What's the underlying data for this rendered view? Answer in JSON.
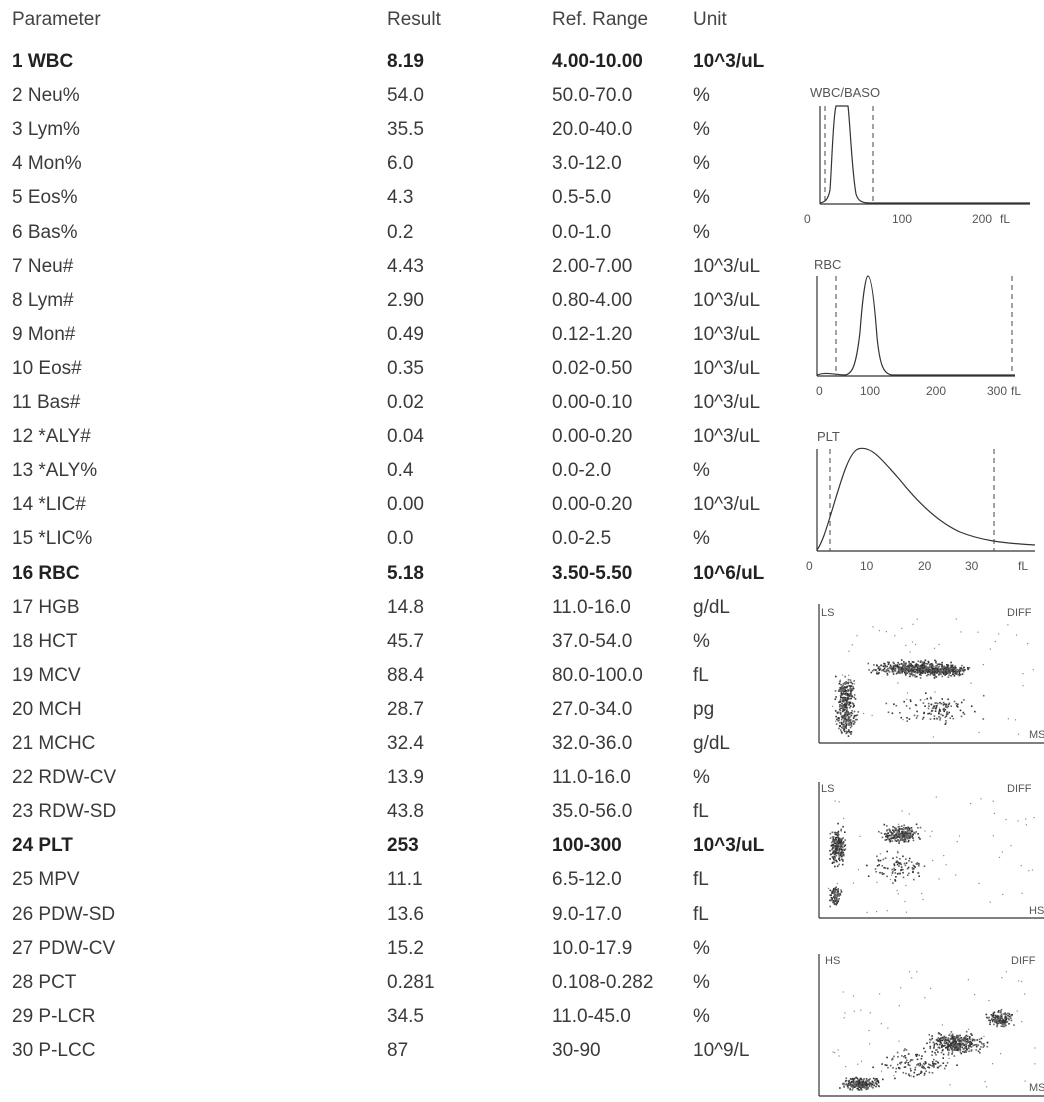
{
  "headers": {
    "parameter": "Parameter",
    "result": "Result",
    "ref": "Ref. Range",
    "unit": "Unit"
  },
  "rows": [
    {
      "name": "1  WBC",
      "result": "8.19",
      "ref": "4.00-10.00",
      "unit": "10^3/uL",
      "bold": true
    },
    {
      "name": "2  Neu%",
      "result": "54.0",
      "ref": "50.0-70.0",
      "unit": "%",
      "bold": false
    },
    {
      "name": "3  Lym%",
      "result": "35.5",
      "ref": "20.0-40.0",
      "unit": "%",
      "bold": false
    },
    {
      "name": "4  Mon%",
      "result": "6.0",
      "ref": "3.0-12.0",
      "unit": "%",
      "bold": false
    },
    {
      "name": "5  Eos%",
      "result": "4.3",
      "ref": "0.5-5.0",
      "unit": "%",
      "bold": false
    },
    {
      "name": "6  Bas%",
      "result": "0.2",
      "ref": "0.0-1.0",
      "unit": "%",
      "bold": false
    },
    {
      "name": "7  Neu#",
      "result": "4.43",
      "ref": "2.00-7.00",
      "unit": "10^3/uL",
      "bold": false
    },
    {
      "name": "8  Lym#",
      "result": "2.90",
      "ref": "0.80-4.00",
      "unit": "10^3/uL",
      "bold": false
    },
    {
      "name": "9  Mon#",
      "result": "0.49",
      "ref": "0.12-1.20",
      "unit": "10^3/uL",
      "bold": false
    },
    {
      "name": "10 Eos#",
      "result": "0.35",
      "ref": "0.02-0.50",
      "unit": "10^3/uL",
      "bold": false
    },
    {
      "name": "11 Bas#",
      "result": "0.02",
      "ref": "0.00-0.10",
      "unit": "10^3/uL",
      "bold": false
    },
    {
      "name": "12 *ALY#",
      "result": "0.04",
      "ref": "0.00-0.20",
      "unit": "10^3/uL",
      "bold": false
    },
    {
      "name": "13 *ALY%",
      "result": "0.4",
      "ref": "0.0-2.0",
      "unit": "%",
      "bold": false
    },
    {
      "name": "14 *LIC#",
      "result": "0.00",
      "ref": "0.00-0.20",
      "unit": "10^3/uL",
      "bold": false
    },
    {
      "name": "15 *LIC%",
      "result": "0.0",
      "ref": "0.0-2.5",
      "unit": "%",
      "bold": false
    },
    {
      "name": "16 RBC",
      "result": "5.18",
      "ref": "3.50-5.50",
      "unit": "10^6/uL",
      "bold": true
    },
    {
      "name": "17 HGB",
      "result": "14.8",
      "ref": "11.0-16.0",
      "unit": "g/dL",
      "bold": false
    },
    {
      "name": "18 HCT",
      "result": "45.7",
      "ref": "37.0-54.0",
      "unit": "%",
      "bold": false
    },
    {
      "name": "19 MCV",
      "result": "88.4",
      "ref": "80.0-100.0",
      "unit": "fL",
      "bold": false
    },
    {
      "name": "20 MCH",
      "result": "28.7",
      "ref": "27.0-34.0",
      "unit": "pg",
      "bold": false
    },
    {
      "name": "21 MCHC",
      "result": "32.4",
      "ref": "32.0-36.0",
      "unit": "g/dL",
      "bold": false
    },
    {
      "name": "22 RDW-CV",
      "result": "13.9",
      "ref": "11.0-16.0",
      "unit": "%",
      "bold": false
    },
    {
      "name": "23 RDW-SD",
      "result": "43.8",
      "ref": "35.0-56.0",
      "unit": "fL",
      "bold": false
    },
    {
      "name": "24 PLT",
      "result": "253",
      "ref": "100-300",
      "unit": "10^3/uL",
      "bold": true
    },
    {
      "name": "25 MPV",
      "result": "11.1",
      "ref": "6.5-12.0",
      "unit": "fL",
      "bold": false
    },
    {
      "name": "26 PDW-SD",
      "result": "13.6",
      "ref": "9.0-17.0",
      "unit": "fL",
      "bold": false
    },
    {
      "name": "27 PDW-CV",
      "result": "15.2",
      "ref": "10.0-17.9",
      "unit": "%",
      "bold": false
    },
    {
      "name": "28 PCT",
      "result": "0.281",
      "ref": "0.108-0.282",
      "unit": "%",
      "bold": false
    },
    {
      "name": "29 P-LCR",
      "result": "34.5",
      "ref": "11.0-45.0",
      "unit": "%",
      "bold": false
    },
    {
      "name": "30 P-LCC",
      "result": "87",
      "ref": "30-90",
      "unit": "10^9/L",
      "bold": false
    }
  ],
  "histograms": {
    "wbc": {
      "title": "WBC/BASO",
      "ticks": [
        "0",
        "100",
        "200"
      ],
      "unit": "fL"
    },
    "rbc": {
      "title": "RBC",
      "ticks": [
        "0",
        "100",
        "200",
        "300"
      ],
      "unit": "fL"
    },
    "plt": {
      "title": "PLT",
      "ticks": [
        "0",
        "10",
        "20",
        "30"
      ],
      "unit": "fL"
    }
  },
  "scatters": [
    {
      "left_label": "LS",
      "right_label": "DIFF",
      "corner_label": "MS"
    },
    {
      "left_label": "LS",
      "right_label": "DIFF",
      "corner_label": "HS"
    },
    {
      "left_label": "HS",
      "right_label": "DIFF",
      "corner_label": "MS"
    }
  ]
}
